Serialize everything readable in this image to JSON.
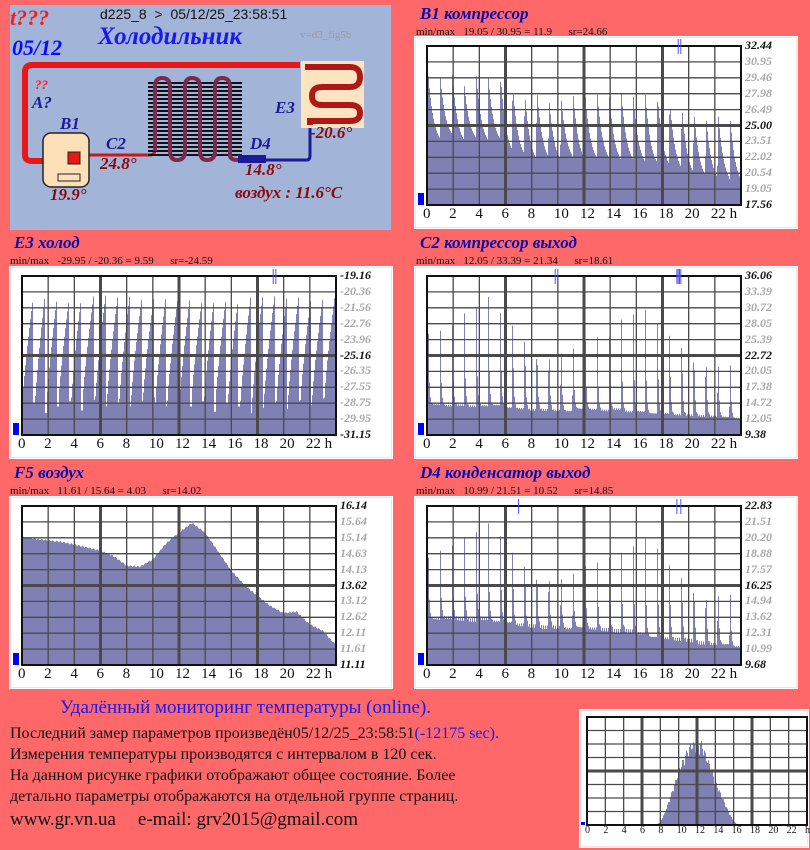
{
  "diagram": {
    "status": "t???",
    "date": "05/12",
    "header": "d225_8  >  05/12/25_23:58:51",
    "title": "Холодильник",
    "version": "v=d3_fig5b",
    "unknown": "??",
    "a_label": "A?",
    "b1_label": "B1",
    "b1_value": "19.9°",
    "c2_label": "C2",
    "c2_value": "24.8°",
    "d4_label": "D4",
    "d4_value": "14.8°",
    "e3_label": "E3",
    "e3_value": "-20.6°",
    "air": "воздух : 11.6°C"
  },
  "footer": {
    "heading": "Удалённый мониторинг температуры (online).",
    "line1": "Последний замер параметров произведён05/12/25_23:58:51",
    "line1_offset": "(-12175 sec).",
    "line2": "Измерения температуры  производятся с интервалом в 120 сек.",
    "line3": "На данном рисунке графики отображают общее состояние. Более",
    "line4": "детально параметры отображаются на отдельной группе страниц.",
    "site": "www.gr.vn.ua",
    "email": "e-mail: grv2015@gmail.com"
  },
  "colors": {
    "fill": "#8080b4",
    "grid": "#4a4a4a",
    "indicator": "#0000ff",
    "pipe_hot": "#e81818",
    "pipe_cold": "#1a1a9a"
  },
  "chart_data": [
    {
      "id": "b1",
      "type": "area",
      "shape": "decay",
      "title": "B1 компрессор",
      "stats": "min/max   19.05 / 30.95 = 11.9      sr=24.66",
      "ylim": [
        17.56,
        32.44
      ],
      "yticks": [
        "32.44",
        "30.95",
        "29.46",
        "27.98",
        "26.49",
        "25.00",
        "23.51",
        "22.02",
        "20.54",
        "19.05",
        "17.56"
      ],
      "xticks": [
        "0",
        "2",
        "4",
        "6",
        "8",
        "10",
        "12",
        "14",
        "16",
        "18",
        "20",
        "22 h"
      ],
      "xlim": [
        0,
        24
      ],
      "marks": [
        19.2,
        19.4
      ],
      "peaks": [
        30.9,
        30.5,
        30.9,
        29.5,
        30.5,
        30.2,
        30.8,
        29.8,
        29.2,
        29.6,
        28.6,
        28.7,
        29.2,
        28.9,
        29.1,
        28.8,
        29.0,
        28.6,
        28.7,
        28.8,
        28.5,
        28.0,
        27.5,
        27.0,
        27.4,
        26.8
      ],
      "troughs": [
        23.0,
        23.5,
        22.8,
        23.2,
        22.8,
        23.0,
        21.8,
        21.5,
        21.0,
        21.2,
        21.0,
        21.4,
        21.0,
        21.2,
        21.2,
        21.0,
        21.0,
        20.8,
        20.7,
        20.5,
        20.2,
        19.8,
        19.5,
        19.3,
        19.2,
        19.0
      ]
    },
    {
      "id": "e3",
      "type": "area",
      "shape": "ramp",
      "title": "E3 холод",
      "stats": "min/max   -29.95 / -20.36 = 9.59      sr=-24.59",
      "ylim": [
        -31.15,
        -19.16
      ],
      "yticks": [
        "-19.16",
        "-20.36",
        "-21.56",
        "-22.76",
        "-23.96",
        "-25.16",
        "-26.35",
        "-27.55",
        "-28.75",
        "-29.95",
        "-31.15"
      ],
      "xticks": [
        "0",
        "2",
        "4",
        "6",
        "8",
        "10",
        "12",
        "14",
        "16",
        "18",
        "20",
        "22 h"
      ],
      "xlim": [
        0,
        24
      ],
      "marks": [
        19.2,
        19.4
      ],
      "peaks": [
        -20.8,
        -20.4,
        -20.6,
        -20.7,
        -20.6,
        -20.7,
        -20.6,
        -20.7,
        -20.6,
        -20.8,
        -20.7,
        -20.6,
        -20.7,
        -20.6,
        -20.8,
        -20.7,
        -20.6,
        -20.7,
        -20.8,
        -20.7,
        -20.6,
        -20.7,
        -20.6,
        -20.8,
        -20.7,
        -20.5
      ],
      "troughs": [
        -28.8,
        -29.5,
        -29.0,
        -28.6,
        -29.3,
        -28.5,
        -29.0,
        -28.7,
        -29.0,
        -28.6,
        -28.3,
        -29.0,
        -28.7,
        -29.0,
        -28.6,
        -29.4,
        -28.7,
        -29.0,
        -29.5,
        -29.1,
        -28.7,
        -29.2,
        -28.6,
        -28.9,
        -28.4,
        -28.5
      ]
    },
    {
      "id": "c2",
      "type": "area",
      "shape": "spike",
      "title": "C2 компрессор выход",
      "stats": "min/max   12.05 / 33.39 = 21.34      sr=18.61",
      "ylim": [
        9.38,
        36.06
      ],
      "yticks": [
        "36.06",
        "33.39",
        "30.72",
        "28.05",
        "25.39",
        "22.72",
        "20.05",
        "17.38",
        "14.72",
        "12.05",
        "9.38"
      ],
      "xticks": [
        "0",
        "2",
        "4",
        "6",
        "8",
        "10",
        "12",
        "14",
        "16",
        "18",
        "20",
        "22 h"
      ],
      "xlim": [
        0,
        24
      ],
      "marks": [
        9.8,
        10.0,
        19.1,
        19.2,
        19.3,
        19.4
      ],
      "peaks": [
        33.3,
        32.4,
        31.9,
        32.9,
        32.2,
        32.7,
        31.8,
        32.0,
        31.5,
        30.3,
        30.9,
        30.4,
        31.2,
        31.9,
        31.4,
        30.0,
        32.2,
        31.5,
        30.7,
        29.9,
        30.1,
        30.4,
        30.2,
        29.8,
        28.5,
        27.5
      ],
      "troughs": [
        14.5,
        14.3,
        14.4,
        14.2,
        14.3,
        14.4,
        14.0,
        13.8,
        13.6,
        13.6,
        13.5,
        13.4,
        13.8,
        13.7,
        13.5,
        13.7,
        13.3,
        13.3,
        13.0,
        13.0,
        12.8,
        12.7,
        12.6,
        12.5,
        12.4,
        12.2
      ]
    },
    {
      "id": "f5",
      "type": "area",
      "shape": "smooth",
      "title": "F5 воздух",
      "stats": "min/max   11.61 / 15.64 = 4.03      sr=14.02",
      "ylim": [
        11.11,
        16.14
      ],
      "yticks": [
        "16.14",
        "15.64",
        "15.14",
        "14.63",
        "14.13",
        "13.62",
        "13.12",
        "12.62",
        "12.11",
        "11.61",
        "11.11"
      ],
      "xticks": [
        "0",
        "2",
        "4",
        "6",
        "8",
        "10",
        "12",
        "14",
        "16",
        "18",
        "20",
        "22 h"
      ],
      "xlim": [
        0,
        24
      ],
      "marks": [],
      "x": [
        0,
        1,
        2,
        3,
        4,
        5,
        6,
        7,
        8,
        9,
        10,
        11,
        12,
        13,
        14,
        15,
        16,
        17,
        18,
        19,
        20,
        21,
        22,
        23,
        24
      ],
      "values": [
        15.15,
        15.1,
        15.05,
        15.0,
        14.92,
        14.82,
        14.72,
        14.55,
        14.25,
        14.22,
        14.45,
        14.95,
        15.3,
        15.6,
        15.3,
        14.7,
        14.1,
        13.65,
        13.3,
        12.98,
        12.75,
        12.8,
        12.4,
        12.2,
        11.75
      ]
    },
    {
      "id": "d4",
      "type": "area",
      "shape": "spike",
      "title": "D4 конденсатор выход",
      "stats": "min/max   10.99 / 21.51 = 10.52      sr=14.85",
      "ylim": [
        9.68,
        22.83
      ],
      "yticks": [
        "22.83",
        "21.51",
        "20.20",
        "18.88",
        "17.57",
        "16.25",
        "14.94",
        "13.62",
        "12.31",
        "10.99",
        "9.68"
      ],
      "xticks": [
        "0",
        "2",
        "4",
        "6",
        "8",
        "10",
        "12",
        "14",
        "16",
        "18",
        "20",
        "22 h"
      ],
      "xlim": [
        0,
        24
      ],
      "marks": [
        7.0,
        19.1,
        19.4
      ],
      "peaks": [
        21.5,
        21.5,
        21.4,
        21.5,
        21.3,
        21.4,
        21.2,
        20.8,
        20.6,
        20.5,
        20.4,
        20.2,
        20.4,
        20.9,
        20.8,
        20.7,
        20.5,
        20.4,
        20.3,
        20.2,
        19.8,
        19.8,
        19.6,
        19.2,
        19.0,
        18.6
      ],
      "troughs": [
        13.5,
        13.6,
        13.5,
        13.4,
        13.5,
        13.3,
        13.2,
        13.0,
        12.9,
        12.8,
        12.8,
        12.7,
        12.8,
        12.7,
        12.6,
        12.5,
        12.5,
        12.3,
        12.0,
        11.9,
        11.8,
        11.7,
        11.5,
        11.4,
        11.4,
        11.2
      ]
    },
    {
      "id": "mini",
      "type": "area",
      "shape": "smooth",
      "title": "",
      "stats": "",
      "ylim": [
        0,
        100
      ],
      "yticks": [],
      "xticks": [
        "0",
        "2",
        "4",
        "6",
        "8",
        "10",
        "12",
        "14",
        "16",
        "18",
        "20",
        "22",
        "h"
      ],
      "xlim": [
        0,
        24
      ],
      "marks": [],
      "x": [
        0,
        7.5,
        8,
        8.5,
        9,
        9.5,
        10,
        10.5,
        11,
        11.5,
        12,
        12.5,
        13,
        13.5,
        14,
        14.5,
        15,
        15.5,
        16,
        16.5,
        24
      ],
      "values": [
        0,
        0,
        3,
        12,
        25,
        38,
        52,
        62,
        72,
        78,
        75,
        78,
        66,
        55,
        42,
        32,
        22,
        12,
        4,
        0,
        0
      ]
    }
  ]
}
